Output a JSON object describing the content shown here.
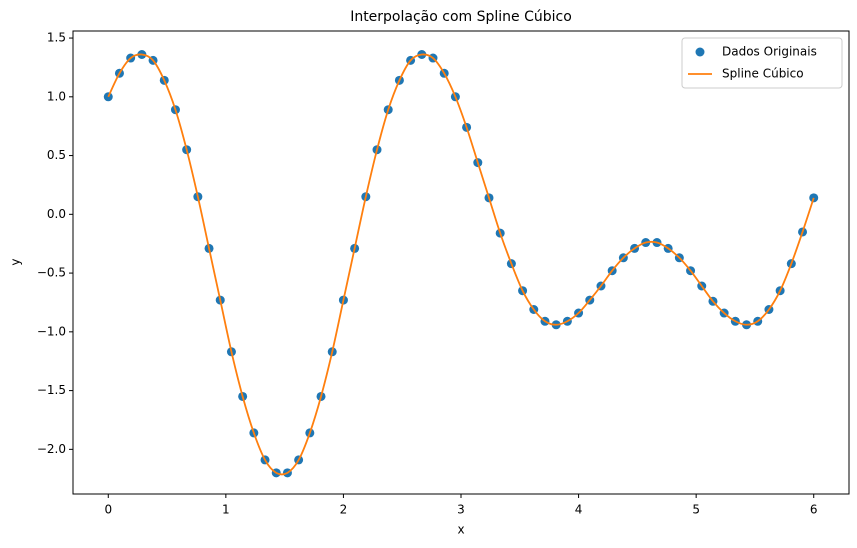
{
  "chart_data": {
    "type": "scatter_line",
    "title": "Interpolação com Spline Cúbico",
    "xlabel": "x",
    "ylabel": "y",
    "xlim": [
      -0.3,
      6.3
    ],
    "ylim": [
      -2.38,
      1.56
    ],
    "xticks": [
      0,
      1,
      2,
      3,
      4,
      5,
      6
    ],
    "yticks": [
      {
        "value": -2.0,
        "label": "−2.0"
      },
      {
        "value": -1.5,
        "label": "−1.5"
      },
      {
        "value": -1.0,
        "label": "−1.0"
      },
      {
        "value": -0.5,
        "label": "−0.5"
      },
      {
        "value": 0.0,
        "label": "0.0"
      },
      {
        "value": 0.5,
        "label": "0.5"
      },
      {
        "value": 1.0,
        "label": "1.0"
      },
      {
        "value": 1.5,
        "label": "1.5"
      }
    ],
    "legend": "upper right",
    "x": [
      0,
      0.0952,
      0.1905,
      0.2857,
      0.381,
      0.4762,
      0.5714,
      0.6667,
      0.7619,
      0.8571,
      0.9524,
      1.0476,
      1.1429,
      1.2381,
      1.3333,
      1.4286,
      1.5238,
      1.619,
      1.7143,
      1.8095,
      1.9048,
      2.0,
      2.0952,
      2.1905,
      2.2857,
      2.381,
      2.4762,
      2.5714,
      2.6667,
      2.7619,
      2.8571,
      2.9524,
      3.0476,
      3.1429,
      3.2381,
      3.3333,
      3.4286,
      3.5238,
      3.619,
      3.7143,
      3.8095,
      3.9048,
      4.0,
      4.0952,
      4.1905,
      4.2857,
      4.381,
      4.4762,
      4.5714,
      4.6667,
      4.7619,
      4.8571,
      4.9524,
      5.0476,
      5.1429,
      5.2381,
      5.3333,
      5.4286,
      5.5238,
      5.619,
      5.7143,
      5.8095,
      5.9048,
      6.0
    ],
    "series": [
      {
        "name": "Dados Originais",
        "kind": "points",
        "color": "#1f77b4",
        "values": [
          1.0,
          1.2,
          1.33,
          1.36,
          1.31,
          1.14,
          0.89,
          0.55,
          0.15,
          -0.29,
          -0.73,
          -1.17,
          -1.55,
          -1.86,
          -2.09,
          -2.2,
          -2.2,
          -2.09,
          -1.86,
          -1.55,
          -1.17,
          -0.73,
          -0.29,
          0.15,
          0.55,
          0.89,
          1.14,
          1.31,
          1.36,
          1.33,
          1.2,
          1.0,
          0.74,
          0.44,
          0.14,
          -0.16,
          -0.42,
          -0.65,
          -0.81,
          -0.91,
          -0.94,
          -0.91,
          -0.84,
          -0.73,
          -0.61,
          -0.48,
          -0.37,
          -0.29,
          -0.24,
          -0.24,
          -0.29,
          -0.37,
          -0.48,
          -0.61,
          -0.74,
          -0.84,
          -0.91,
          -0.94,
          -0.91,
          -0.81,
          -0.65,
          -0.42,
          -0.15,
          0.14
        ]
      },
      {
        "name": "Spline Cúbico",
        "kind": "line",
        "color": "#ff7f0e",
        "values": [
          1.0,
          1.2,
          1.33,
          1.36,
          1.31,
          1.14,
          0.89,
          0.55,
          0.15,
          -0.29,
          -0.73,
          -1.17,
          -1.55,
          -1.86,
          -2.09,
          -2.2,
          -2.2,
          -2.09,
          -1.86,
          -1.55,
          -1.17,
          -0.73,
          -0.29,
          0.15,
          0.55,
          0.89,
          1.14,
          1.31,
          1.36,
          1.33,
          1.2,
          1.0,
          0.74,
          0.44,
          0.14,
          -0.16,
          -0.42,
          -0.65,
          -0.81,
          -0.91,
          -0.94,
          -0.91,
          -0.84,
          -0.73,
          -0.61,
          -0.48,
          -0.37,
          -0.29,
          -0.24,
          -0.24,
          -0.29,
          -0.37,
          -0.48,
          -0.61,
          -0.74,
          -0.84,
          -0.91,
          -0.94,
          -0.91,
          -0.81,
          -0.65,
          -0.42,
          -0.15,
          0.14
        ]
      }
    ]
  }
}
